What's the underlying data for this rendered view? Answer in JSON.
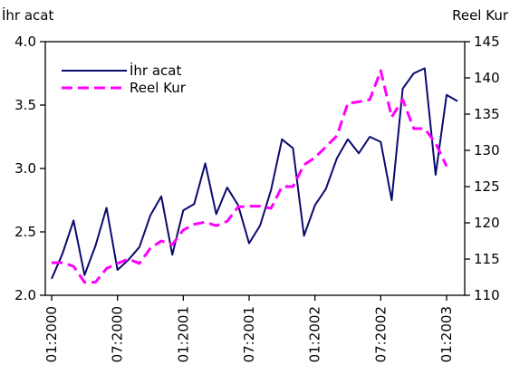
{
  "chart_data": {
    "type": "line",
    "left_axis_label": "İhr acat",
    "right_axis_label": "Reel Kur",
    "left_ylim": [
      2.0,
      4.0
    ],
    "left_yticks": [
      "2.0",
      "2.5",
      "3.0",
      "3.5",
      "4.0"
    ],
    "right_ylim": [
      110,
      145
    ],
    "right_yticks": [
      "110",
      "115",
      "120",
      "125",
      "130",
      "135",
      "140",
      "145"
    ],
    "x_tick_labels": [
      "01:2000",
      "07:2000",
      "01:2001",
      "07:2001",
      "01:2002",
      "07:2002",
      "01:2003"
    ],
    "x_tick_months": [
      0,
      6,
      12,
      18,
      24,
      30,
      36
    ],
    "legend": {
      "placement": "top-left",
      "entries": [
        "İhr acat",
        "Reel Kur"
      ]
    },
    "series": [
      {
        "name": "İhr acat",
        "axis": "left",
        "color": "#0a0a6e",
        "dash": "solid",
        "x": [
          0,
          1,
          2,
          3,
          4,
          5,
          6,
          7,
          8,
          9,
          10,
          11,
          12,
          13,
          14,
          15,
          16,
          17,
          18,
          19,
          20,
          21,
          22,
          23,
          24,
          25,
          26,
          27,
          28,
          29,
          30,
          31,
          32,
          33,
          34,
          35,
          36,
          37
        ],
        "values": [
          2.13,
          2.33,
          2.59,
          2.16,
          2.39,
          2.69,
          2.2,
          2.28,
          2.38,
          2.63,
          2.78,
          2.32,
          2.67,
          2.72,
          3.04,
          2.64,
          2.85,
          2.71,
          2.41,
          2.55,
          2.83,
          3.23,
          3.16,
          2.47,
          2.71,
          2.84,
          3.08,
          3.23,
          3.12,
          3.25,
          3.21,
          2.75,
          3.63,
          3.75,
          3.79,
          2.95,
          3.58,
          3.53
        ]
      },
      {
        "name": "Reel Kur",
        "axis": "right",
        "color": "#ff00ff",
        "dash": "dashed",
        "x": [
          0,
          1,
          2,
          3,
          4,
          5,
          6,
          7,
          8,
          9,
          10,
          11,
          12,
          13,
          14,
          15,
          16,
          17,
          18,
          19,
          20,
          21,
          22,
          23,
          24,
          25,
          26,
          27,
          28,
          29,
          30,
          31,
          32,
          33,
          34,
          35,
          36
        ],
        "values": [
          114.5,
          114.5,
          114.0,
          111.8,
          111.8,
          113.7,
          114.4,
          115.0,
          114.4,
          116.5,
          117.5,
          117.0,
          119.0,
          119.8,
          120.1,
          119.6,
          120.2,
          122.2,
          122.3,
          122.3,
          122.0,
          125.0,
          125.0,
          128.0,
          129.0,
          130.5,
          132.0,
          136.5,
          136.7,
          137.0,
          141.0,
          134.6,
          137.0,
          133.0,
          133.0,
          131.0,
          127.8
        ]
      }
    ]
  }
}
